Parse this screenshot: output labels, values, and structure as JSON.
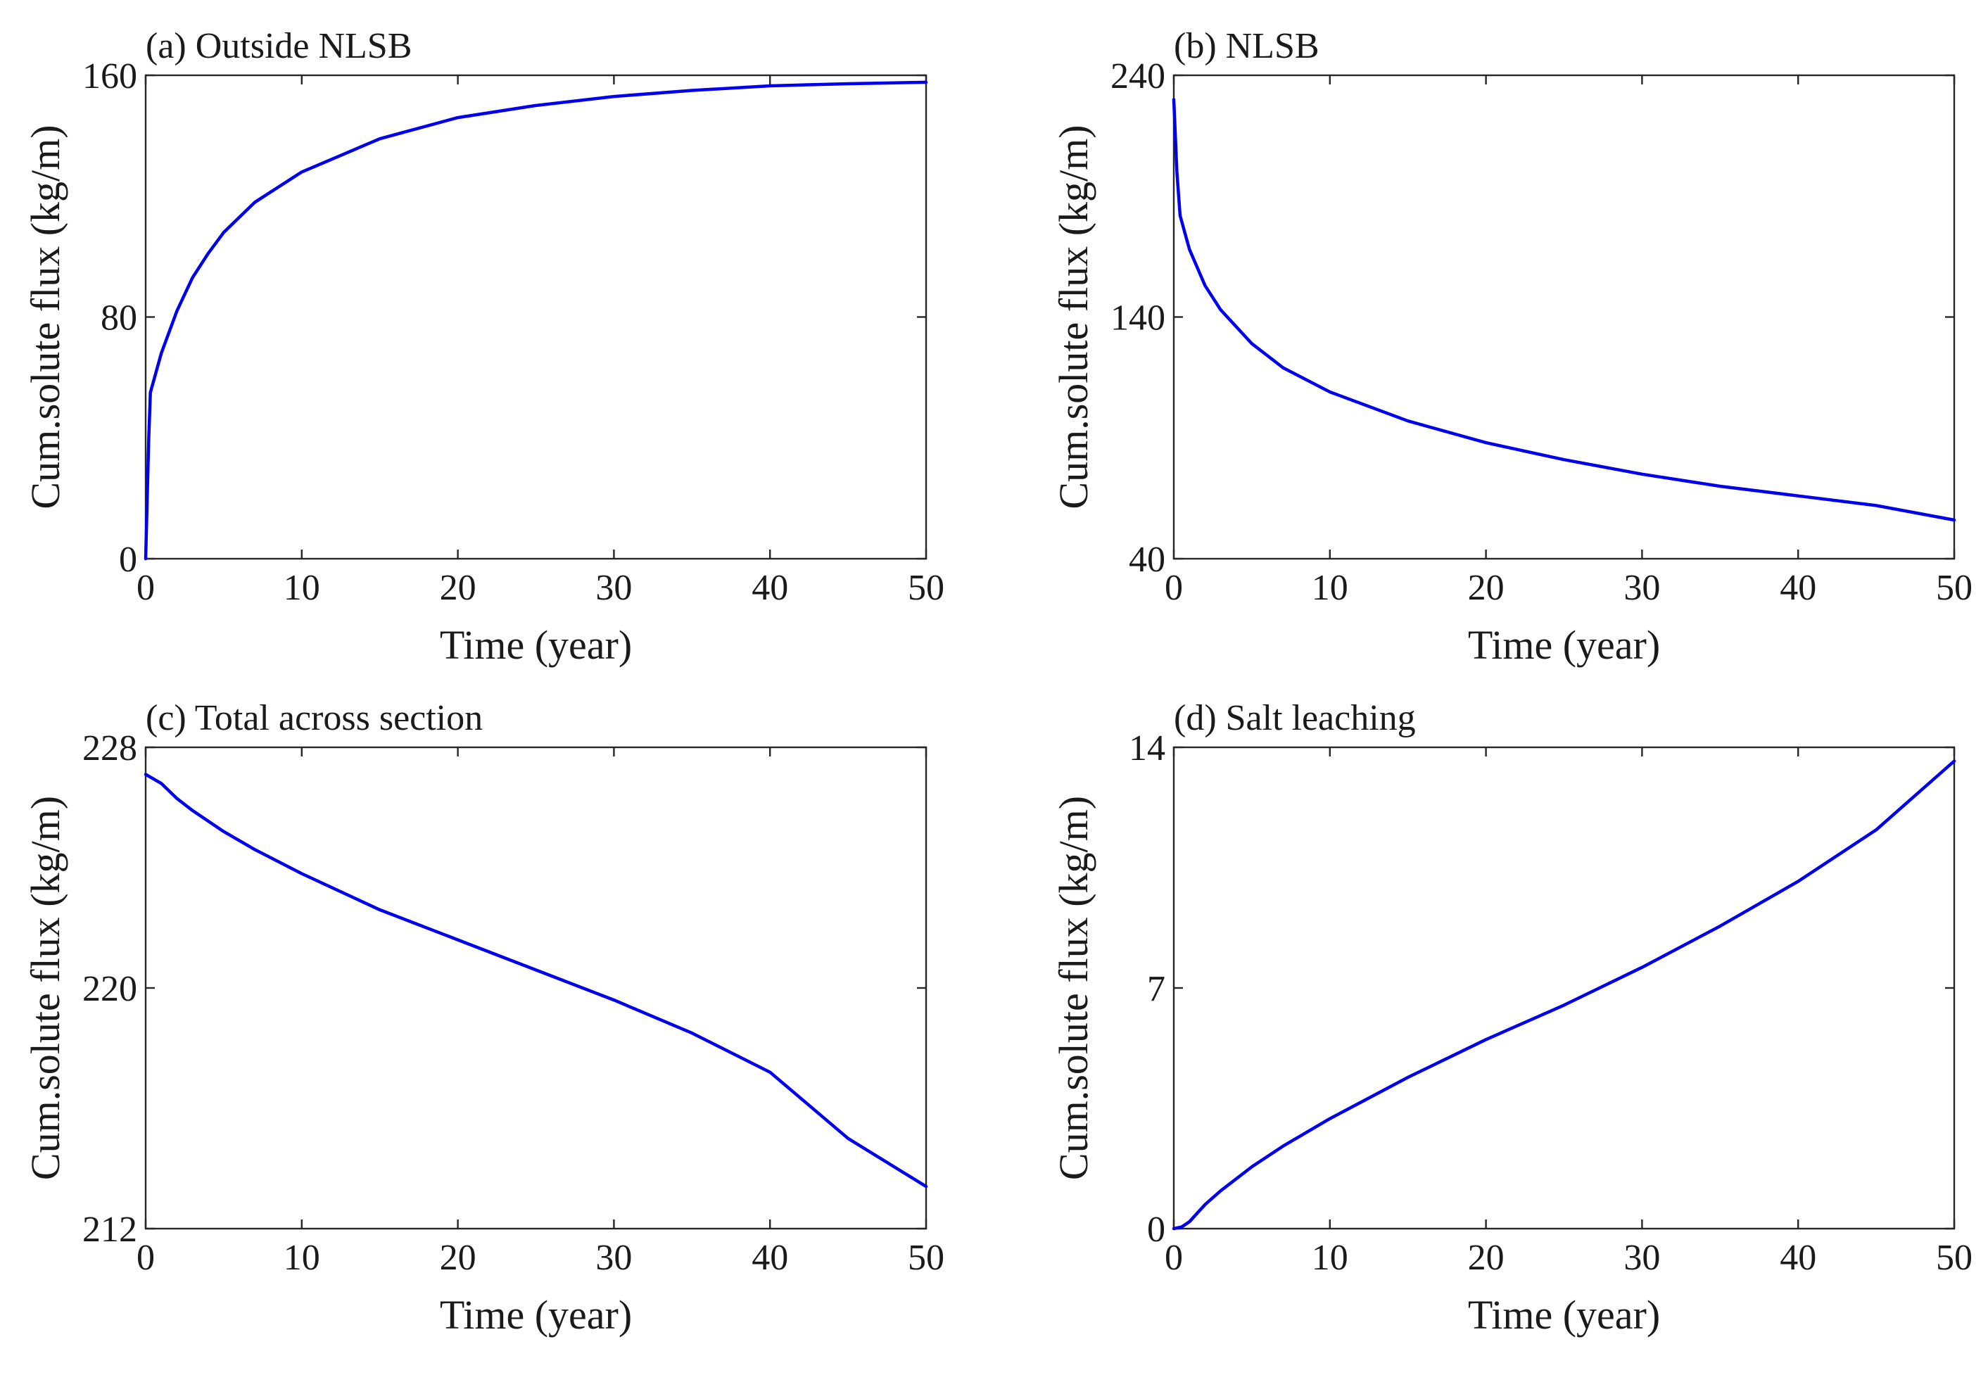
{
  "chart_data": [
    {
      "type": "line",
      "title": "(a) Outside NLSB",
      "xlabel": "Time (year)",
      "ylabel": "Cum.solute flux (kg/m)",
      "xlim": [
        0,
        50
      ],
      "ylim": [
        0,
        160
      ],
      "xticks": [
        0,
        10,
        20,
        30,
        40,
        50
      ],
      "yticks": [
        0,
        80,
        160
      ],
      "series": [
        {
          "name": "Outside NLSB",
          "color": "#0000ee",
          "x": [
            0,
            0.2,
            0.3,
            1,
            2,
            3,
            4,
            5,
            7,
            10,
            15,
            20,
            25,
            30,
            35,
            40,
            45,
            50
          ],
          "y": [
            0,
            40,
            55,
            68,
            82,
            93,
            101,
            108,
            118,
            128,
            139,
            146,
            150,
            153,
            155,
            156.5,
            157.2,
            157.7
          ]
        }
      ]
    },
    {
      "type": "line",
      "title": "(b) NLSB",
      "xlabel": "Time (year)",
      "ylabel": "Cum.solute flux (kg/m)",
      "xlim": [
        0,
        50
      ],
      "ylim": [
        40,
        240
      ],
      "xticks": [
        0,
        10,
        20,
        30,
        40,
        50
      ],
      "yticks": [
        40,
        140,
        240
      ],
      "series": [
        {
          "name": "NLSB",
          "color": "#0000ee",
          "x": [
            0,
            0.2,
            0.4,
            1,
            2,
            3,
            5,
            7,
            10,
            15,
            20,
            25,
            30,
            35,
            40,
            45,
            50
          ],
          "y": [
            230,
            200,
            182,
            168,
            153,
            143,
            129,
            119,
            109,
            97,
            88,
            81,
            75,
            70,
            66,
            62,
            56
          ]
        }
      ]
    },
    {
      "type": "line",
      "title": "(c) Total across section",
      "xlabel": "Time (year)",
      "ylabel": "Cum.solute flux (kg/m)",
      "xlim": [
        0,
        50
      ],
      "ylim": [
        212,
        228
      ],
      "xticks": [
        0,
        10,
        20,
        30,
        40,
        50
      ],
      "yticks": [
        212,
        220,
        228
      ],
      "series": [
        {
          "name": "Total across section",
          "color": "#0000ee",
          "x": [
            0,
            1,
            2,
            3,
            5,
            7,
            10,
            15,
            20,
            25,
            30,
            35,
            40,
            45,
            50
          ],
          "y": [
            227.1,
            226.8,
            226.3,
            225.9,
            225.2,
            224.6,
            223.8,
            222.6,
            221.6,
            220.6,
            219.6,
            218.5,
            217.2,
            215.0,
            213.4
          ]
        }
      ]
    },
    {
      "type": "line",
      "title": "(d) Salt leaching",
      "xlabel": "Time (year)",
      "ylabel": "Cum.solute flux (kg/m)",
      "xlim": [
        0,
        50
      ],
      "ylim": [
        0,
        14
      ],
      "xticks": [
        0,
        10,
        20,
        30,
        40,
        50
      ],
      "yticks": [
        0,
        7,
        14
      ],
      "series": [
        {
          "name": "Salt leaching",
          "color": "#0000ee",
          "x": [
            0,
            0.5,
            1,
            2,
            3,
            5,
            7,
            10,
            15,
            20,
            25,
            30,
            35,
            40,
            45,
            50
          ],
          "y": [
            0,
            0.05,
            0.2,
            0.7,
            1.1,
            1.8,
            2.4,
            3.2,
            4.4,
            5.5,
            6.5,
            7.6,
            8.8,
            10.1,
            11.6,
            13.6
          ]
        }
      ]
    }
  ]
}
